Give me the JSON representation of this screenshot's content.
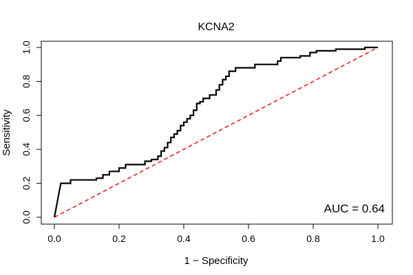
{
  "chart_data": {
    "type": "line",
    "title": "KCNA2",
    "xlabel": "1 − Specificity",
    "ylabel": "Sensitivity",
    "xlim": [
      0,
      1
    ],
    "ylim": [
      0,
      1
    ],
    "x_ticks": [
      "0.0",
      "0.2",
      "0.4",
      "0.6",
      "0.8",
      "1.0"
    ],
    "y_ticks": [
      "0.0",
      "0.2",
      "0.4",
      "0.6",
      "0.8",
      "1.0"
    ],
    "grid": false,
    "annotation": "AUC = 0.64",
    "series": [
      {
        "style": "solid",
        "color": "#000000",
        "x": [
          0,
          0.01,
          0.01,
          0.015,
          0.02,
          0.025,
          0.05,
          0.05,
          0.13,
          0.13,
          0.15,
          0.15,
          0.17,
          0.17,
          0.2,
          0.2,
          0.22,
          0.22,
          0.28,
          0.28,
          0.3,
          0.3,
          0.32,
          0.32,
          0.33,
          0.33,
          0.34,
          0.34,
          0.35,
          0.35,
          0.36,
          0.36,
          0.37,
          0.37,
          0.38,
          0.38,
          0.39,
          0.39,
          0.4,
          0.4,
          0.41,
          0.41,
          0.42,
          0.42,
          0.43,
          0.43,
          0.44,
          0.44,
          0.45,
          0.45,
          0.46,
          0.46,
          0.48,
          0.48,
          0.5,
          0.5,
          0.51,
          0.51,
          0.52,
          0.52,
          0.53,
          0.53,
          0.54,
          0.54,
          0.55,
          0.55,
          0.56,
          0.56,
          0.62,
          0.62,
          0.69,
          0.69,
          0.7,
          0.7,
          0.76,
          0.76,
          0.79,
          0.79,
          0.81,
          0.81,
          0.87,
          0.87,
          0.96,
          0.96,
          1.0
        ],
        "y": [
          0,
          0.1,
          0.1,
          0.15,
          0.2,
          0.2,
          0.2,
          0.22,
          0.22,
          0.23,
          0.23,
          0.25,
          0.25,
          0.27,
          0.27,
          0.29,
          0.29,
          0.31,
          0.31,
          0.33,
          0.33,
          0.34,
          0.34,
          0.36,
          0.36,
          0.39,
          0.39,
          0.41,
          0.41,
          0.44,
          0.44,
          0.47,
          0.47,
          0.49,
          0.49,
          0.51,
          0.51,
          0.54,
          0.54,
          0.56,
          0.56,
          0.58,
          0.58,
          0.6,
          0.6,
          0.63,
          0.63,
          0.67,
          0.67,
          0.68,
          0.68,
          0.7,
          0.7,
          0.72,
          0.72,
          0.75,
          0.75,
          0.78,
          0.78,
          0.81,
          0.81,
          0.83,
          0.83,
          0.86,
          0.86,
          0.86,
          0.86,
          0.88,
          0.88,
          0.9,
          0.9,
          0.92,
          0.92,
          0.94,
          0.94,
          0.95,
          0.95,
          0.97,
          0.97,
          0.98,
          0.98,
          0.99,
          0.99,
          1.0,
          1.0
        ]
      },
      {
        "style": "dashed",
        "color": "#e8201f",
        "x": [
          0,
          1
        ],
        "y": [
          0,
          1
        ]
      }
    ]
  }
}
